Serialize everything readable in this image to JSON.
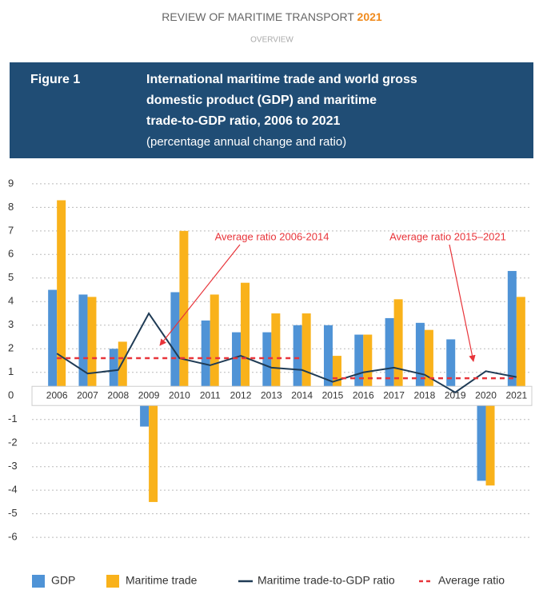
{
  "header": {
    "publication": "REVIEW OF MARITIME TRANSPORT",
    "year": "2021",
    "section": "OVERVIEW"
  },
  "figure": {
    "label": "Figure 1",
    "title_lines": [
      "International maritime trade and world gross",
      "domestic product (GDP) and maritime",
      "trade-to-GDP ratio, 2006 to 2021"
    ],
    "subtitle": "(percentage annual change and ratio)"
  },
  "chart_data": {
    "type": "bar",
    "categories": [
      "2006",
      "2007",
      "2008",
      "2009",
      "2010",
      "2011",
      "2012",
      "2013",
      "2014",
      "2015",
      "2016",
      "2017",
      "2018",
      "2019",
      "2020",
      "2021"
    ],
    "series": [
      {
        "name": "GDP",
        "type": "bar",
        "color": "#4f93d6",
        "values": [
          4.5,
          4.3,
          2.0,
          -1.3,
          4.4,
          3.2,
          2.7,
          2.7,
          3.0,
          3.0,
          2.6,
          3.3,
          3.1,
          2.4,
          -3.6,
          5.3
        ]
      },
      {
        "name": "Maritime trade",
        "type": "bar",
        "color": "#f9b21b",
        "values": [
          8.3,
          4.2,
          2.3,
          -4.5,
          7.0,
          4.3,
          4.8,
          3.5,
          3.5,
          1.7,
          2.6,
          4.1,
          2.8,
          0.3,
          -3.8,
          4.2
        ]
      },
      {
        "name": "Maritime trade-to-GDP ratio",
        "type": "line",
        "color": "#1f3b55",
        "values": [
          1.8,
          0.95,
          1.1,
          3.5,
          1.6,
          1.3,
          1.7,
          1.2,
          1.1,
          0.6,
          1.0,
          1.2,
          0.9,
          0.15,
          1.05,
          0.8
        ]
      },
      {
        "name": "Average ratio",
        "type": "line",
        "dashed": true,
        "color": "#e8343a",
        "values": [
          1.6,
          1.6,
          1.6,
          1.6,
          1.6,
          1.6,
          1.6,
          1.6,
          1.6,
          0.75,
          0.75,
          0.75,
          0.75,
          0.75,
          0.75,
          0.75
        ]
      }
    ],
    "ylim": [
      -6.3,
      9.3
    ],
    "yticks": [
      -6,
      -5,
      -4,
      -3,
      -2,
      -1,
      0,
      1,
      2,
      3,
      4,
      5,
      6,
      7,
      8,
      9
    ],
    "grid": true,
    "annotations": [
      {
        "text": "Average ratio 2006-2014"
      },
      {
        "text": "Average ratio 2015–2021"
      }
    ]
  }
}
